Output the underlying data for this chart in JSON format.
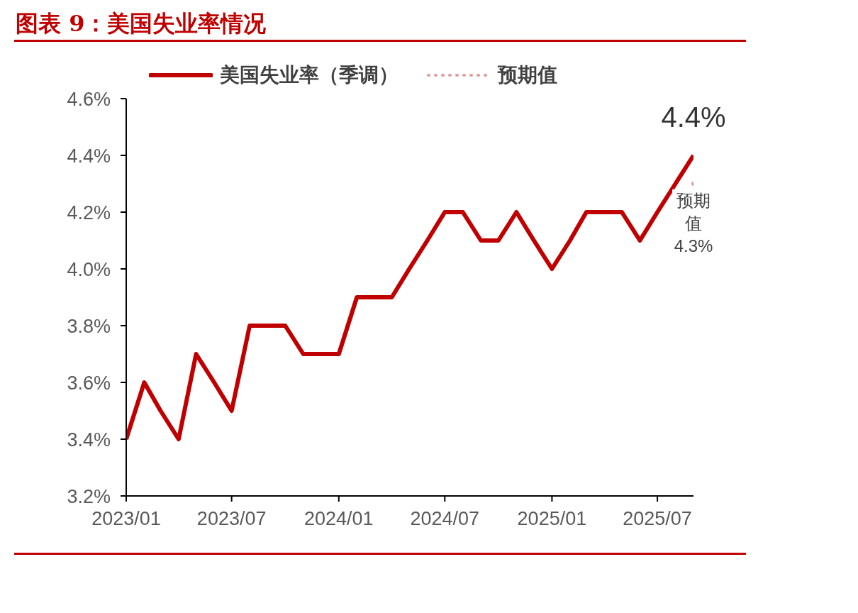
{
  "chart_data": {
    "type": "line",
    "title": "图表 9：美国失业率情况",
    "x": [
      "2023-01",
      "2023-02",
      "2023-03",
      "2023-04",
      "2023-05",
      "2023-06",
      "2023-07",
      "2023-08",
      "2023-09",
      "2023-10",
      "2023-11",
      "2023-12",
      "2024-01",
      "2024-02",
      "2024-03",
      "2024-04",
      "2024-05",
      "2024-06",
      "2024-07",
      "2024-08",
      "2024-09",
      "2024-10",
      "2024-11",
      "2024-12",
      "2025-01",
      "2025-02",
      "2025-03",
      "2025-04",
      "2025-05",
      "2025-06",
      "2025-07",
      "2025-08",
      "2025-09"
    ],
    "series": [
      {
        "name": "美国失业率（季调）",
        "color": "#c00000",
        "values": [
          3.4,
          3.6,
          3.5,
          3.4,
          3.7,
          3.6,
          3.5,
          3.8,
          3.8,
          3.8,
          3.7,
          3.7,
          3.7,
          3.9,
          3.9,
          3.9,
          4.0,
          4.1,
          4.2,
          4.2,
          4.1,
          4.1,
          4.2,
          4.1,
          4.0,
          4.1,
          4.2,
          4.2,
          4.2,
          4.1,
          4.2,
          4.3,
          4.4
        ],
        "line_style": "solid",
        "marker": "none"
      },
      {
        "name": "预期值",
        "color": "#e09a9c",
        "x": [
          "2025-09"
        ],
        "values": [
          4.3
        ],
        "line_style": "dotted",
        "marker": "circle"
      }
    ],
    "xlim": [
      "2023-01",
      "2025-09"
    ],
    "xticks": [
      {
        "value": "2023-01",
        "label": "2023/01"
      },
      {
        "value": "2023-07",
        "label": "2023/07"
      },
      {
        "value": "2024-01",
        "label": "2024/01"
      },
      {
        "value": "2024-07",
        "label": "2024/07"
      },
      {
        "value": "2025-01",
        "label": "2025/01"
      },
      {
        "value": "2025-07",
        "label": "2025/07"
      }
    ],
    "ylim": [
      3.2,
      4.6
    ],
    "yticks": [
      {
        "value": 3.2,
        "label": "3.2%"
      },
      {
        "value": 3.4,
        "label": "3.4%"
      },
      {
        "value": 3.6,
        "label": "3.6%"
      },
      {
        "value": 3.8,
        "label": "3.8%"
      },
      {
        "value": 4.0,
        "label": "4.0%"
      },
      {
        "value": 4.2,
        "label": "4.2%"
      },
      {
        "value": 4.4,
        "label": "4.4%"
      },
      {
        "value": 4.6,
        "label": "4.6%"
      }
    ],
    "grid": false,
    "legend": "top",
    "annotations": [
      {
        "text": "4.4%",
        "x": "2025-09",
        "y": 4.4
      },
      {
        "text": "预期值 4.3%",
        "x": "2025-09",
        "y": 4.3
      }
    ]
  }
}
